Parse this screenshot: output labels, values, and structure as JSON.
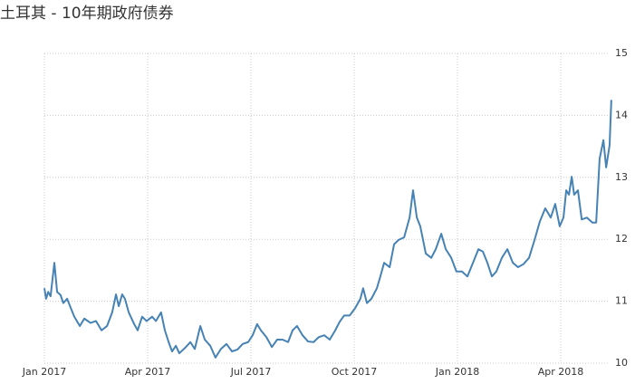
{
  "chart_data": {
    "type": "line",
    "title": "土耳其 - 10年期政府债券",
    "x": [
      0,
      0.05,
      0.11,
      0.18,
      0.29,
      0.37,
      0.47,
      0.55,
      0.66,
      0.76,
      0.87,
      1.03,
      1.16,
      1.34,
      1.5,
      1.66,
      1.82,
      1.97,
      2.08,
      2.16,
      2.26,
      2.34,
      2.45,
      2.61,
      2.71,
      2.84,
      2.97,
      3.13,
      3.24,
      3.39,
      3.5,
      3.61,
      3.71,
      3.82,
      3.92,
      4.11,
      4.24,
      4.37,
      4.53,
      4.66,
      4.82,
      4.97,
      5.13,
      5.29,
      5.45,
      5.61,
      5.76,
      5.92,
      6.05,
      6.18,
      6.29,
      6.45,
      6.61,
      6.76,
      6.92,
      7.08,
      7.21,
      7.34,
      7.5,
      7.66,
      7.82,
      7.97,
      8.13,
      8.29,
      8.45,
      8.58,
      8.71,
      8.87,
      9.03,
      9.18,
      9.26,
      9.37,
      9.5,
      9.66,
      9.76,
      9.87,
      10.03,
      10.16,
      10.29,
      10.45,
      10.61,
      10.71,
      10.82,
      10.92,
      11.08,
      11.24,
      11.37,
      11.53,
      11.66,
      11.82,
      11.97,
      12.13,
      12.29,
      12.45,
      12.61,
      12.74,
      12.87,
      13,
      13.13,
      13.29,
      13.45,
      13.61,
      13.76,
      13.92,
      14.08,
      14.24,
      14.39,
      14.55,
      14.71,
      14.84,
      14.97,
      15.08,
      15.16,
      15.24,
      15.32,
      15.39,
      15.5,
      15.61,
      15.76,
      15.92,
      16.03,
      16.13,
      16.24,
      16.32,
      16.42,
      16.47
    ],
    "series": [
      {
        "color": "#4682b4",
        "values": [
          11.21,
          11.04,
          11.15,
          11.08,
          11.62,
          11.15,
          11.1,
          10.97,
          11.04,
          10.9,
          10.75,
          10.6,
          10.72,
          10.65,
          10.68,
          10.53,
          10.6,
          10.82,
          11.11,
          10.92,
          11.11,
          11.04,
          10.82,
          10.63,
          10.53,
          10.75,
          10.68,
          10.75,
          10.68,
          10.82,
          10.53,
          10.34,
          10.19,
          10.28,
          10.16,
          10.26,
          10.34,
          10.23,
          10.6,
          10.38,
          10.28,
          10.09,
          10.23,
          10.31,
          10.19,
          10.22,
          10.31,
          10.34,
          10.45,
          10.63,
          10.53,
          10.42,
          10.26,
          10.38,
          10.38,
          10.34,
          10.53,
          10.6,
          10.45,
          10.35,
          10.34,
          10.42,
          10.45,
          10.38,
          10.53,
          10.67,
          10.77,
          10.77,
          10.89,
          11.04,
          11.21,
          10.97,
          11.04,
          11.21,
          11.4,
          11.62,
          11.55,
          11.92,
          11.99,
          12.03,
          12.35,
          12.79,
          12.35,
          12.21,
          11.77,
          11.7,
          11.84,
          12.09,
          11.84,
          11.7,
          11.48,
          11.48,
          11.4,
          11.62,
          11.84,
          11.8,
          11.62,
          11.4,
          11.48,
          11.7,
          11.84,
          11.62,
          11.55,
          11.6,
          11.7,
          11.99,
          12.28,
          12.5,
          12.35,
          12.57,
          12.21,
          12.35,
          12.79,
          12.72,
          13.01,
          12.72,
          12.79,
          12.32,
          12.35,
          12.27,
          12.27,
          13.3,
          13.6,
          13.16,
          13.52,
          14.25
        ]
      }
    ],
    "xlim": [
      0,
      16.5
    ],
    "xticks": [
      {
        "value": 0,
        "label": "Jan 2017"
      },
      {
        "value": 3,
        "label": "Apr 2017"
      },
      {
        "value": 6,
        "label": "Jul 2017"
      },
      {
        "value": 9,
        "label": "Oct 2017"
      },
      {
        "value": 12,
        "label": "Jan 2018"
      },
      {
        "value": 15,
        "label": "Apr 2018"
      }
    ],
    "ylim": [
      10,
      15
    ],
    "yticks": [
      10,
      11,
      12,
      13,
      14,
      15
    ],
    "grid": true
  }
}
